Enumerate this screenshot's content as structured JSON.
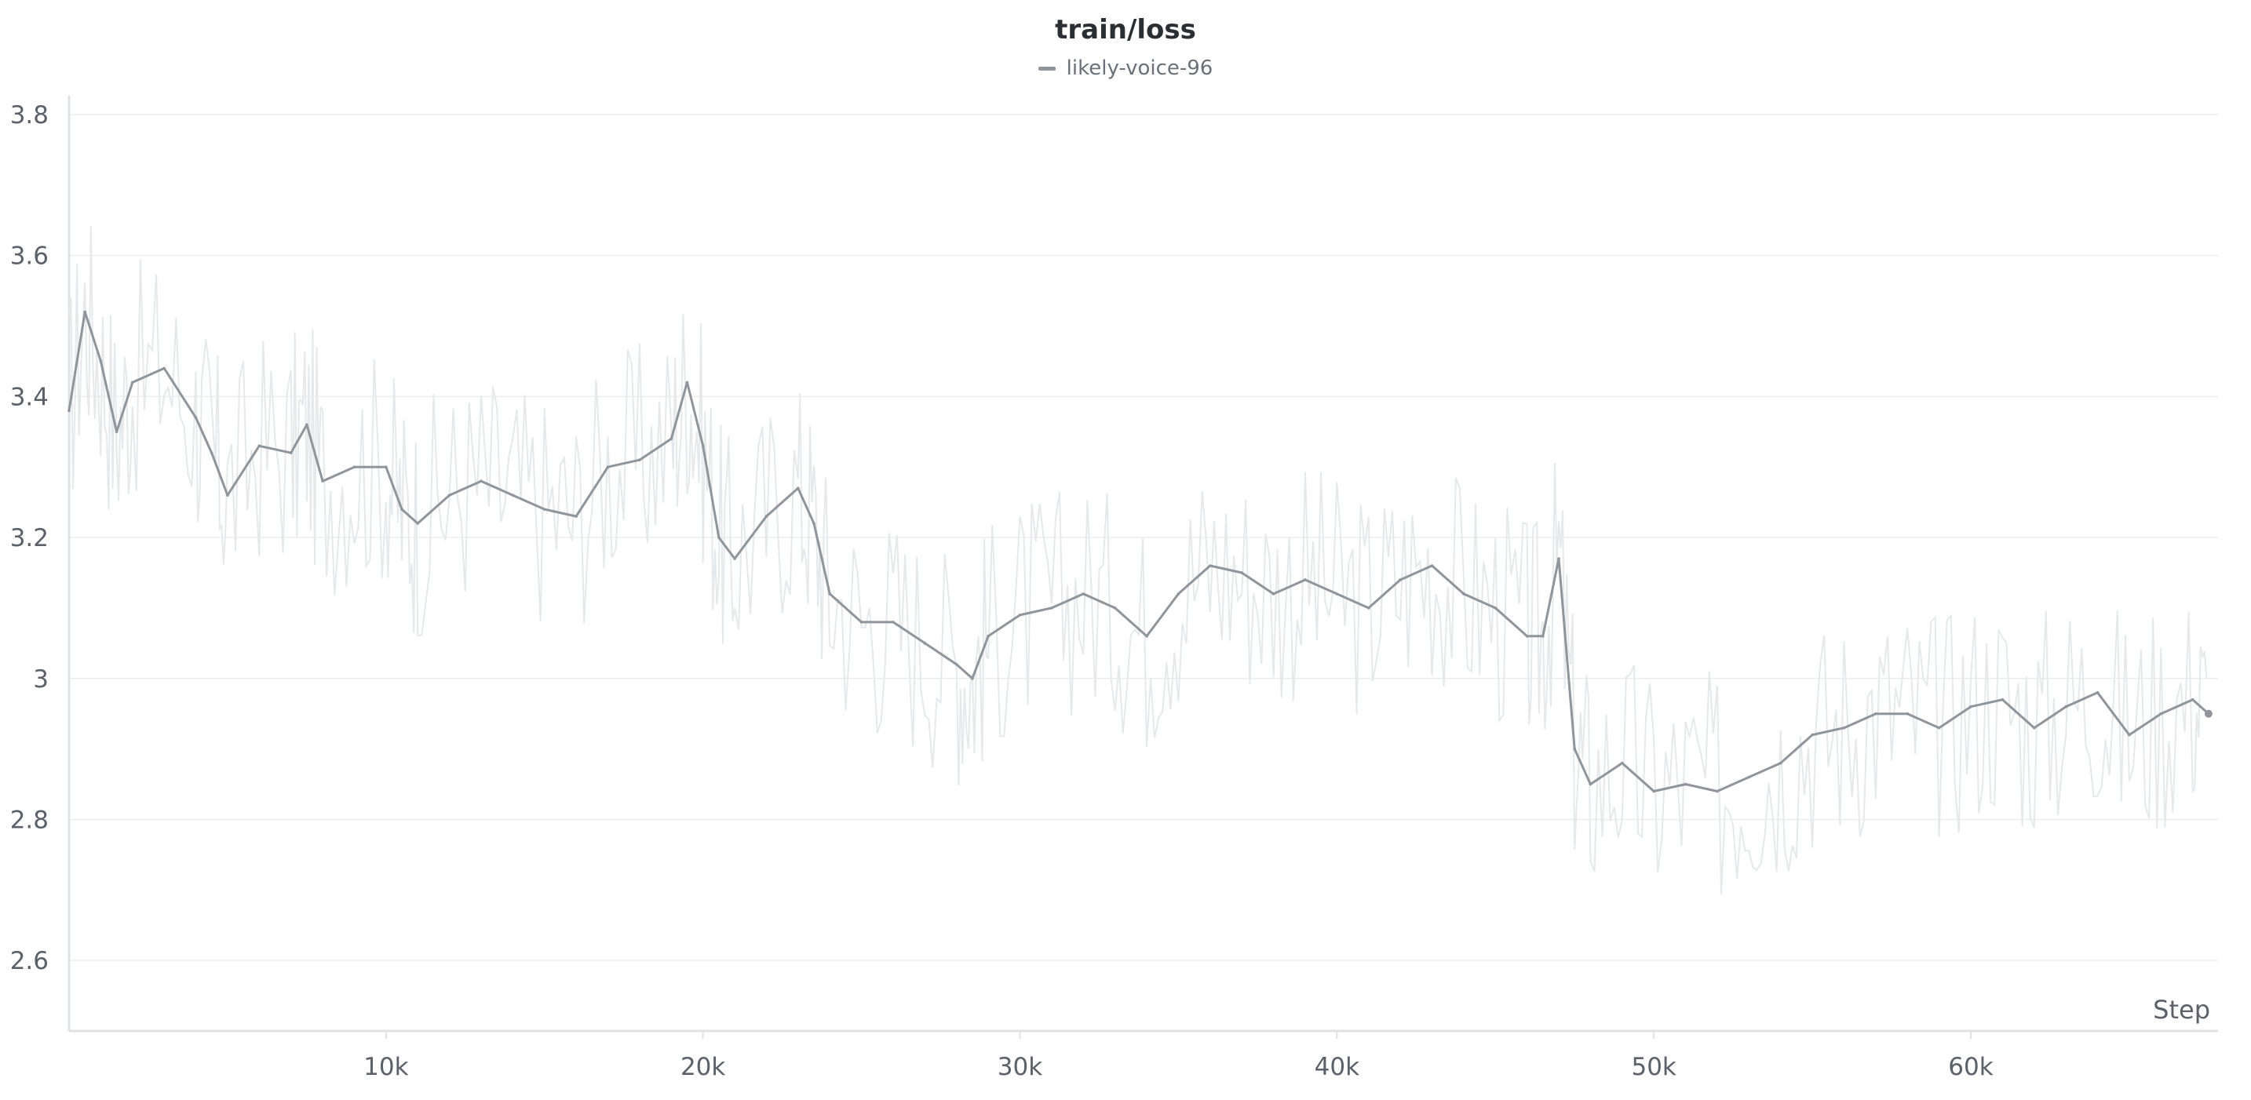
{
  "chart_data": {
    "type": "line",
    "title": "train/loss",
    "xlabel": "Step",
    "ylabel": "",
    "xlim": [
      0,
      67800
    ],
    "ylim": [
      2.5,
      3.82
    ],
    "x_ticks": [
      10000,
      20000,
      30000,
      40000,
      50000,
      60000
    ],
    "x_tick_labels": [
      "10k",
      "20k",
      "30k",
      "40k",
      "50k",
      "60k"
    ],
    "y_ticks": [
      2.6,
      2.8,
      3.0,
      3.2,
      3.4,
      3.6,
      3.8
    ],
    "y_tick_labels": [
      "2.6",
      "2.8",
      "3",
      "3.2",
      "3.4",
      "3.6",
      "3.8"
    ],
    "grid": true,
    "legend_position": "top-center",
    "colors": {
      "smoothed": "#8f959b",
      "raw": "#e6e9eb",
      "grid": "#ededed",
      "axis": "#dfe2e5"
    },
    "series": [
      {
        "name": "likely-voice-96",
        "x": [
          0,
          500,
          1000,
          1500,
          2000,
          3000,
          4000,
          4500,
          5000,
          6000,
          7000,
          7500,
          8000,
          9000,
          10000,
          10500,
          11000,
          12000,
          13000,
          14000,
          15000,
          16000,
          17000,
          18000,
          19000,
          19500,
          20000,
          20500,
          21000,
          22000,
          23000,
          23500,
          24000,
          25000,
          26000,
          27000,
          28000,
          28500,
          29000,
          30000,
          31000,
          32000,
          33000,
          34000,
          35000,
          36000,
          37000,
          38000,
          39000,
          40000,
          41000,
          42000,
          43000,
          44000,
          45000,
          46000,
          46500,
          47000,
          47500,
          48000,
          49000,
          50000,
          51000,
          52000,
          53000,
          54000,
          55000,
          56000,
          57000,
          58000,
          59000,
          60000,
          61000,
          62000,
          63000,
          64000,
          65000,
          66000,
          67000,
          67500
        ],
        "y": [
          3.38,
          3.52,
          3.45,
          3.35,
          3.42,
          3.44,
          3.37,
          3.32,
          3.26,
          3.33,
          3.32,
          3.36,
          3.28,
          3.3,
          3.3,
          3.24,
          3.22,
          3.26,
          3.28,
          3.26,
          3.24,
          3.23,
          3.3,
          3.31,
          3.34,
          3.42,
          3.33,
          3.2,
          3.17,
          3.23,
          3.27,
          3.22,
          3.12,
          3.08,
          3.08,
          3.05,
          3.02,
          3.0,
          3.06,
          3.09,
          3.1,
          3.12,
          3.1,
          3.06,
          3.12,
          3.16,
          3.15,
          3.12,
          3.14,
          3.12,
          3.1,
          3.14,
          3.16,
          3.12,
          3.1,
          3.06,
          3.06,
          3.17,
          2.9,
          2.85,
          2.88,
          2.84,
          2.85,
          2.84,
          2.86,
          2.88,
          2.92,
          2.93,
          2.95,
          2.95,
          2.93,
          2.96,
          2.97,
          2.93,
          2.96,
          2.98,
          2.92,
          2.95,
          2.97,
          2.95
        ]
      }
    ]
  }
}
